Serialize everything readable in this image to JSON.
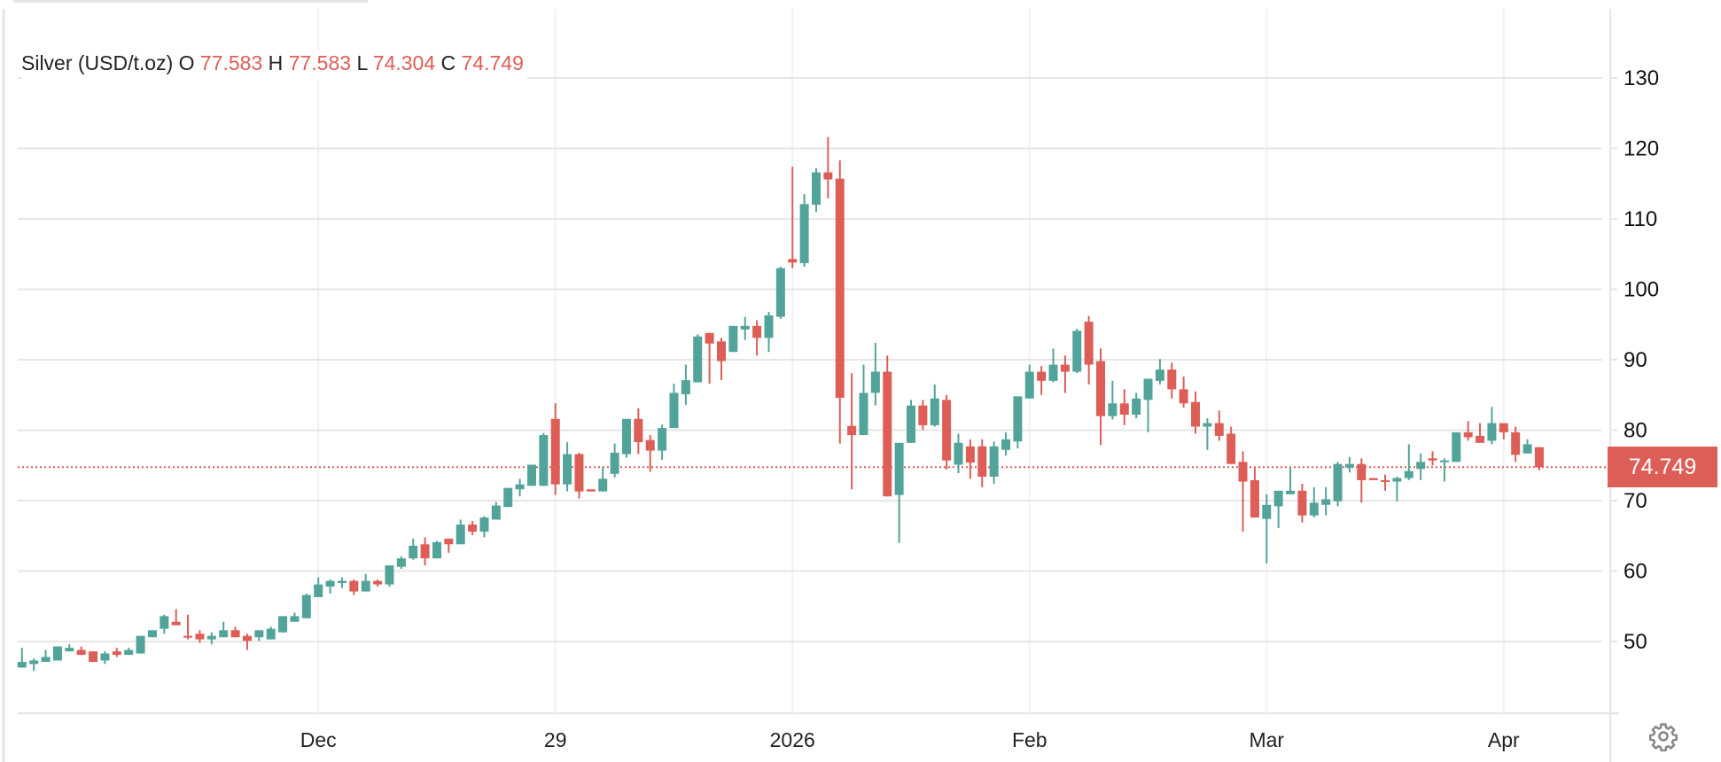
{
  "legend": {
    "symbol": "Silver (USD/t.oz)",
    "o_label": "O",
    "o_value": "77.583",
    "h_label": "H",
    "h_value": "77.583",
    "l_label": "L",
    "l_value": "74.304",
    "c_label": "C",
    "c_value": "74.749"
  },
  "last_price_label": "74.749",
  "settings_icon": "gear-icon",
  "colors": {
    "up": "#52a49a",
    "down": "#dd5e56",
    "grid": "#e6e6e6",
    "last_price": "#dd5e56"
  },
  "chart_data": {
    "type": "candlestick",
    "title": "Silver (USD/t.oz)",
    "ylim": [
      40,
      135
    ],
    "y_ticks": [
      50,
      60,
      70,
      80,
      90,
      100,
      110,
      120,
      130
    ],
    "y_axis_position": "right",
    "x_ticks": [
      {
        "label": "Dec",
        "bar": 25
      },
      {
        "label": "29",
        "bar": 45
      },
      {
        "label": "2026",
        "bar": 65
      },
      {
        "label": "Feb",
        "bar": 85
      },
      {
        "label": "Mar",
        "bar": 105
      },
      {
        "label": "Apr",
        "bar": 125
      }
    ],
    "grid": true,
    "last_price": 74.749,
    "ohlc_fields": [
      "open",
      "high",
      "low",
      "close"
    ],
    "candles": [
      [
        46.3,
        49.1,
        46.3,
        47.1
      ],
      [
        46.8,
        47.6,
        45.8,
        47.3
      ],
      [
        47.1,
        48.8,
        47.1,
        47.8
      ],
      [
        47.3,
        49.3,
        47.3,
        49.3
      ],
      [
        48.6,
        49.6,
        48.6,
        49.1
      ],
      [
        48.8,
        49.3,
        48.1,
        48.1
      ],
      [
        48.6,
        48.6,
        47.1,
        47.1
      ],
      [
        47.3,
        48.6,
        46.8,
        48.3
      ],
      [
        48.6,
        49.1,
        47.8,
        48.1
      ],
      [
        48.1,
        49.1,
        48.1,
        48.8
      ],
      [
        48.3,
        50.8,
        48.3,
        50.8
      ],
      [
        50.6,
        51.6,
        50.6,
        51.6
      ],
      [
        51.8,
        53.8,
        51.1,
        53.6
      ],
      [
        52.8,
        54.6,
        52.3,
        52.3
      ],
      [
        50.8,
        53.8,
        50.3,
        50.6
      ],
      [
        51.1,
        51.6,
        49.8,
        50.3
      ],
      [
        50.3,
        51.3,
        49.6,
        50.8
      ],
      [
        50.6,
        52.8,
        50.6,
        51.6
      ],
      [
        51.6,
        52.1,
        50.6,
        50.6
      ],
      [
        50.8,
        51.1,
        48.8,
        50.1
      ],
      [
        50.6,
        51.6,
        50.1,
        51.6
      ],
      [
        50.3,
        52.1,
        50.3,
        51.8
      ],
      [
        51.3,
        53.6,
        51.3,
        53.6
      ],
      [
        52.8,
        54.1,
        52.8,
        53.6
      ],
      [
        53.3,
        56.8,
        53.3,
        56.6
      ],
      [
        56.3,
        59.1,
        56.3,
        58.1
      ],
      [
        57.8,
        58.8,
        56.8,
        58.6
      ],
      [
        58.3,
        59.1,
        57.6,
        58.6
      ],
      [
        58.6,
        58.8,
        56.6,
        57.1
      ],
      [
        57.1,
        59.6,
        57.1,
        58.6
      ],
      [
        58.6,
        58.8,
        57.8,
        58.1
      ],
      [
        58.1,
        60.8,
        57.8,
        60.8
      ],
      [
        60.6,
        62.1,
        60.3,
        61.8
      ],
      [
        61.8,
        64.6,
        61.6,
        63.6
      ],
      [
        63.8,
        64.8,
        60.8,
        61.8
      ],
      [
        61.8,
        64.3,
        61.8,
        64.1
      ],
      [
        64.6,
        64.6,
        62.6,
        63.8
      ],
      [
        63.8,
        67.3,
        63.8,
        66.6
      ],
      [
        66.6,
        67.1,
        65.1,
        65.6
      ],
      [
        65.6,
        67.8,
        64.8,
        67.6
      ],
      [
        67.3,
        69.8,
        67.3,
        69.3
      ],
      [
        69.1,
        71.8,
        69.1,
        71.8
      ],
      [
        71.6,
        73.1,
        70.6,
        72.3
      ],
      [
        72.1,
        75.1,
        72.1,
        75.1
      ],
      [
        72.1,
        79.6,
        72.1,
        79.3
      ],
      [
        81.6,
        83.8,
        70.8,
        72.3
      ],
      [
        72.3,
        78.3,
        71.3,
        76.6
      ],
      [
        76.6,
        76.8,
        70.3,
        71.3
      ],
      [
        71.6,
        71.6,
        71.3,
        71.3
      ],
      [
        71.3,
        74.8,
        71.3,
        73.1
      ],
      [
        73.8,
        78.1,
        73.3,
        76.8
      ],
      [
        76.6,
        81.6,
        76.1,
        81.6
      ],
      [
        81.6,
        83.1,
        76.6,
        78.3
      ],
      [
        78.6,
        79.3,
        74.1,
        77.1
      ],
      [
        77.1,
        80.8,
        75.8,
        80.3
      ],
      [
        80.3,
        86.6,
        80.3,
        85.3
      ],
      [
        85.1,
        89.3,
        83.6,
        87.1
      ],
      [
        86.8,
        93.6,
        86.8,
        93.3
      ],
      [
        93.8,
        93.8,
        86.6,
        92.3
      ],
      [
        92.6,
        93.1,
        87.1,
        89.8
      ],
      [
        91.1,
        94.8,
        91.1,
        94.8
      ],
      [
        94.3,
        96.1,
        92.8,
        94.8
      ],
      [
        94.8,
        95.6,
        90.6,
        93.1
      ],
      [
        93.1,
        96.8,
        91.1,
        96.3
      ],
      [
        96.1,
        103.2,
        95.8,
        103.0
      ],
      [
        104.3,
        117.4,
        103.0,
        103.8
      ],
      [
        103.7,
        113.5,
        103.2,
        112.1
      ],
      [
        112.0,
        117.2,
        111.0,
        116.6
      ],
      [
        116.6,
        121.6,
        112.9,
        115.6
      ],
      [
        115.7,
        118.3,
        78.1,
        84.6
      ],
      [
        80.6,
        88.1,
        71.6,
        79.3
      ],
      [
        79.3,
        89.3,
        79.3,
        85.3
      ],
      [
        85.3,
        92.4,
        83.5,
        88.3
      ],
      [
        88.3,
        90.6,
        70.6,
        70.6
      ],
      [
        70.8,
        78.2,
        64.0,
        78.2
      ],
      [
        78.2,
        84.3,
        78.2,
        83.5
      ],
      [
        83.5,
        84.3,
        80.0,
        80.7
      ],
      [
        80.7,
        86.5,
        80.5,
        84.5
      ],
      [
        84.3,
        85.0,
        74.4,
        75.7
      ],
      [
        75.1,
        79.5,
        73.9,
        78.2
      ],
      [
        77.7,
        78.7,
        73.1,
        75.4
      ],
      [
        77.7,
        78.7,
        71.9,
        73.4
      ],
      [
        73.4,
        78.4,
        72.4,
        77.7
      ],
      [
        77.2,
        79.7,
        76.4,
        78.7
      ],
      [
        78.4,
        84.8,
        77.4,
        84.8
      ],
      [
        84.5,
        89.3,
        84.5,
        88.3
      ],
      [
        88.3,
        89.1,
        85.0,
        87.0
      ],
      [
        87.0,
        91.6,
        86.8,
        89.3
      ],
      [
        89.3,
        90.6,
        85.3,
        88.3
      ],
      [
        88.3,
        94.4,
        88.1,
        94.1
      ],
      [
        95.4,
        96.2,
        86.5,
        89.3
      ],
      [
        89.8,
        91.6,
        77.9,
        82.0
      ],
      [
        82.0,
        87.0,
        81.5,
        83.8
      ],
      [
        83.8,
        85.8,
        80.7,
        82.2
      ],
      [
        82.2,
        85.3,
        81.7,
        84.5
      ],
      [
        84.3,
        87.3,
        79.7,
        87.3
      ],
      [
        87.0,
        90.1,
        86.5,
        88.6
      ],
      [
        88.6,
        89.6,
        84.5,
        85.8
      ],
      [
        85.8,
        87.6,
        83.2,
        83.8
      ],
      [
        84.0,
        85.5,
        79.5,
        80.5
      ],
      [
        80.5,
        81.7,
        77.2,
        81.0
      ],
      [
        81.0,
        82.8,
        78.5,
        79.2
      ],
      [
        79.5,
        80.5,
        75.2,
        75.2
      ],
      [
        75.5,
        77.0,
        65.6,
        72.7
      ],
      [
        72.9,
        74.7,
        67.6,
        67.6
      ],
      [
        67.4,
        70.9,
        61.1,
        69.4
      ],
      [
        69.2,
        71.4,
        66.1,
        71.4
      ],
      [
        70.9,
        74.7,
        70.9,
        71.4
      ],
      [
        71.4,
        72.4,
        66.9,
        67.9
      ],
      [
        67.9,
        71.9,
        67.6,
        69.7
      ],
      [
        69.4,
        71.9,
        67.9,
        70.2
      ],
      [
        69.9,
        75.5,
        69.2,
        75.2
      ],
      [
        74.7,
        76.2,
        74.0,
        75.2
      ],
      [
        75.2,
        76.0,
        69.7,
        72.9
      ],
      [
        73.2,
        73.2,
        72.9,
        72.9
      ],
      [
        72.9,
        73.7,
        71.4,
        72.7
      ],
      [
        72.7,
        73.4,
        69.9,
        73.2
      ],
      [
        73.2,
        78.0,
        72.9,
        74.2
      ],
      [
        74.5,
        76.7,
        72.9,
        75.5
      ],
      [
        76.0,
        77.0,
        75.0,
        75.7
      ],
      [
        75.5,
        76.0,
        72.7,
        75.7
      ],
      [
        75.5,
        79.7,
        75.5,
        79.7
      ],
      [
        79.7,
        81.3,
        78.5,
        79.0
      ],
      [
        79.2,
        81.0,
        78.2,
        78.2
      ],
      [
        78.5,
        83.3,
        78.0,
        81.0
      ],
      [
        81.0,
        81.0,
        78.7,
        79.7
      ],
      [
        79.7,
        80.5,
        75.5,
        76.5
      ],
      [
        76.7,
        78.7,
        76.7,
        78.0
      ],
      [
        77.583,
        77.583,
        74.304,
        74.749
      ]
    ]
  }
}
